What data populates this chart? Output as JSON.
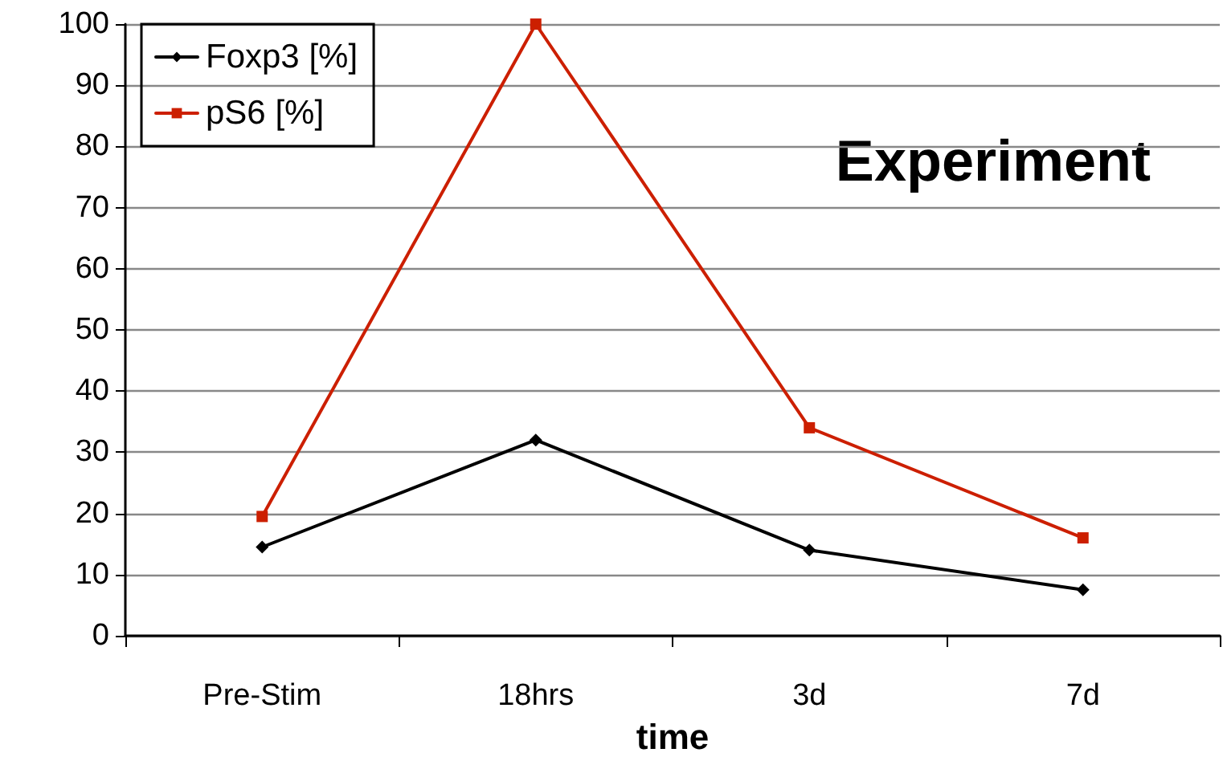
{
  "chart_data": {
    "type": "line",
    "xlabel": "time",
    "categories": [
      "Pre-Stim",
      "18hrs",
      "3d",
      "7d"
    ],
    "series": [
      {
        "name": "Foxp3 [%]",
        "color": "#000000",
        "marker": "diamond",
        "values": [
          14.5,
          32,
          14,
          7.5
        ]
      },
      {
        "name": "pS6 [%]",
        "color": "#cc1f00",
        "marker": "square",
        "values": [
          19.5,
          100,
          34,
          16
        ]
      }
    ],
    "ylim": [
      0,
      100
    ],
    "yticks": [
      0,
      10,
      20,
      30,
      40,
      50,
      60,
      70,
      80,
      90,
      100
    ],
    "grid": "y",
    "legend": "top left",
    "line_style": "solid",
    "annotations": [
      "Experiment"
    ]
  }
}
